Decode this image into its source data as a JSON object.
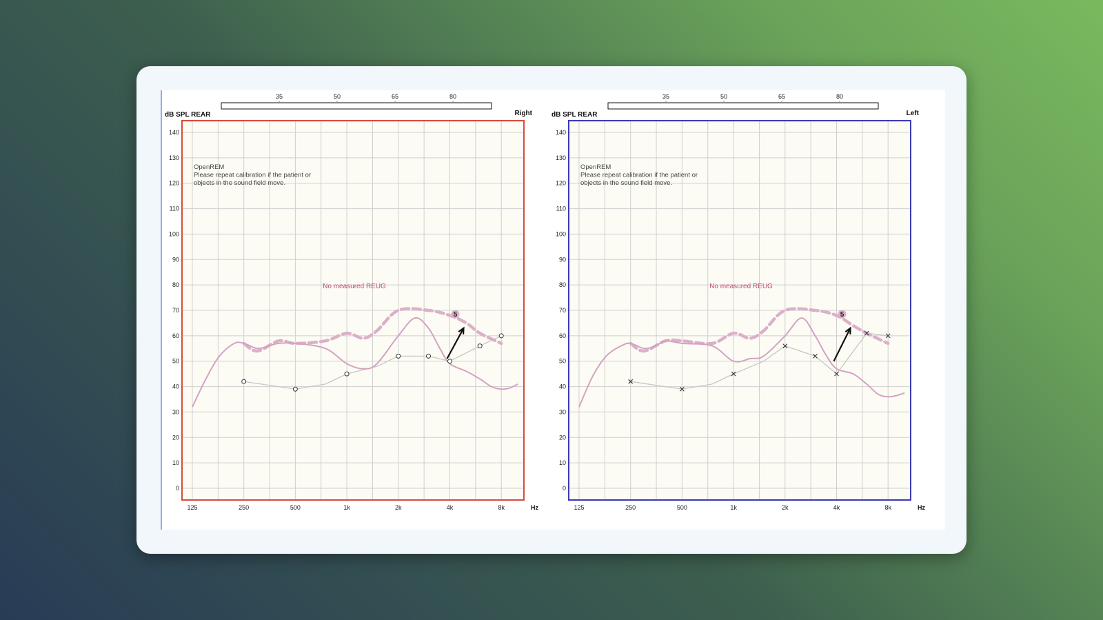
{
  "colors": {
    "target": "#dcb0c8",
    "curve": "#d4a2c2",
    "threshold": "#c6c6c6",
    "grid": "#cfcfcf",
    "plot_bg": "#fcfcf5",
    "right_frame": "#d84a3c",
    "left_frame": "#3a3ab4",
    "note_text": "#c04878"
  },
  "chart_data": [
    {
      "type": "line",
      "side": "Right",
      "ylabel": "dB SPL REAR",
      "xlabel": "Hz",
      "x_ticks": [
        "125",
        "250",
        "500",
        "1k",
        "2k",
        "4k",
        "8k"
      ],
      "y_ticks": [
        0,
        10,
        20,
        30,
        40,
        50,
        60,
        70,
        80,
        90,
        100,
        110,
        120,
        130,
        140
      ],
      "ylim": [
        0,
        140
      ],
      "top_scale": [
        "35",
        "50",
        "65",
        "80"
      ],
      "annotation": [
        "OpenREM",
        "Please repeat calibration if the patient or",
        "objects in the sound field move."
      ],
      "note": "No measured REUG",
      "marker_label": "5",
      "marker": "circle",
      "thresholds": {
        "x": [
          250,
          500,
          750,
          1000,
          1500,
          2000,
          3000,
          4000,
          6000,
          8000
        ],
        "y": [
          42,
          39,
          41,
          45,
          48,
          52,
          52,
          50,
          56,
          60
        ]
      },
      "marked_x": [
        250,
        500,
        1000,
        2000,
        3000,
        4000,
        6000,
        8000
      ],
      "target": {
        "x": [
          250,
          300,
          400,
          500,
          750,
          1000,
          1250,
          1500,
          2000,
          3000,
          4000,
          5000,
          6000,
          8000
        ],
        "y": [
          57,
          54,
          58,
          57,
          58,
          61,
          59,
          62,
          70,
          70,
          68,
          65,
          61,
          57
        ]
      },
      "response": {
        "x": [
          125,
          150,
          180,
          220,
          250,
          300,
          350,
          400,
          500,
          750,
          1000,
          1250,
          1500,
          2000,
          2500,
          3000,
          3500,
          4000,
          5000,
          6000,
          7000,
          8000,
          9000,
          10000
        ],
        "y": [
          32,
          43,
          52,
          57,
          57,
          55,
          56,
          57,
          57,
          55,
          49,
          47,
          49,
          60,
          67,
          63,
          55,
          49,
          46,
          43,
          40,
          39,
          39.5,
          41
        ]
      }
    },
    {
      "type": "line",
      "side": "Left",
      "ylabel": "dB SPL REAR",
      "xlabel": "Hz",
      "x_ticks": [
        "125",
        "250",
        "500",
        "1k",
        "2k",
        "4k",
        "8k"
      ],
      "y_ticks": [
        0,
        10,
        20,
        30,
        40,
        50,
        60,
        70,
        80,
        90,
        100,
        110,
        120,
        130,
        140
      ],
      "ylim": [
        0,
        140
      ],
      "top_scale": [
        "35",
        "50",
        "65",
        "80"
      ],
      "annotation": [
        "OpenREM",
        "Please repeat calibration if the patient or",
        "objects in the sound field move."
      ],
      "note": "No measured REUG",
      "marker_label": "5",
      "marker": "cross",
      "thresholds": {
        "x": [
          250,
          500,
          750,
          1000,
          1500,
          2000,
          3000,
          4000,
          6000,
          8000
        ],
        "y": [
          42,
          39,
          41,
          45,
          50,
          56,
          52,
          45,
          61,
          60
        ]
      },
      "marked_x": [
        250,
        500,
        1000,
        2000,
        3000,
        4000,
        6000,
        8000
      ],
      "target": {
        "x": [
          250,
          300,
          400,
          500,
          750,
          1000,
          1250,
          1500,
          2000,
          3000,
          4000,
          5000,
          6000,
          8000
        ],
        "y": [
          57,
          54,
          58,
          58,
          57,
          61,
          59,
          62,
          70,
          70,
          68,
          64,
          61,
          57
        ]
      },
      "response": {
        "x": [
          125,
          150,
          180,
          220,
          250,
          300,
          350,
          400,
          500,
          750,
          1000,
          1250,
          1500,
          2000,
          2500,
          3000,
          3500,
          4000,
          5000,
          6000,
          7000,
          8000,
          9000,
          10000
        ],
        "y": [
          32,
          44,
          52,
          56,
          57,
          55,
          56,
          58,
          57,
          56,
          50,
          51,
          52,
          60,
          67,
          60,
          52,
          47,
          45,
          41,
          37,
          36,
          36.5,
          37.5
        ]
      }
    }
  ]
}
